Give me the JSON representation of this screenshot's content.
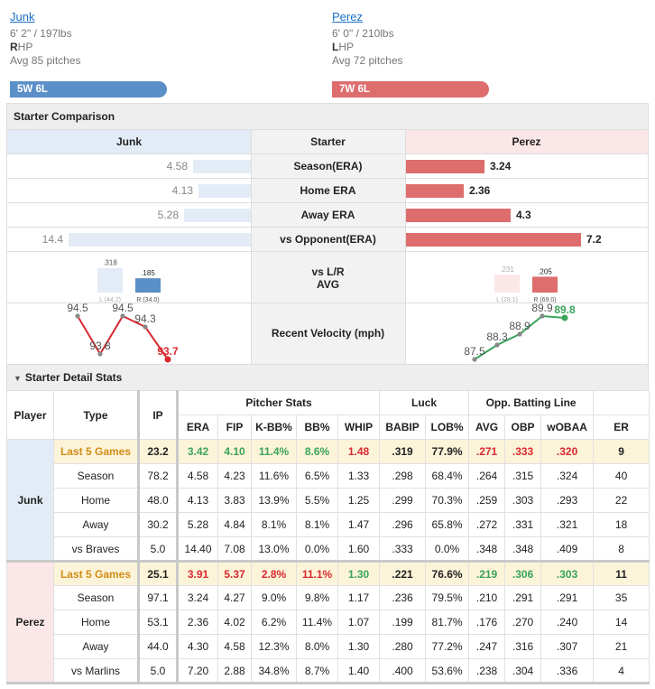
{
  "header": {
    "top_right_link": "↓ ..."
  },
  "home": {
    "name": "Junk",
    "height_weight": "6' 2\" / 197lbs",
    "hand_initial": "R",
    "hand_rest": "HP",
    "avg_pitches": "Avg 85 pitches",
    "record": "5W 6L",
    "color": "#5b8fc7"
  },
  "away": {
    "name": "Perez",
    "height_weight": "6' 0\" / 210lbs",
    "hand_initial": "L",
    "hand_rest": "HP",
    "avg_pitches": "Avg 72 pitches",
    "record": "7W 6L",
    "color": "#de6d6d"
  },
  "comparison": {
    "title": "Starter Comparison",
    "col_left": "Junk",
    "col_mid": "Starter",
    "col_right": "Perez",
    "rows": [
      {
        "label": "Season(ERA)",
        "left": "4.58",
        "right": "3.24",
        "lval": 4.58,
        "rval": 3.24
      },
      {
        "label": "Home ERA",
        "left": "4.13",
        "right": "2.36",
        "lval": 4.13,
        "rval": 2.36
      },
      {
        "label": "Away ERA",
        "left": "5.28",
        "right": "4.3",
        "lval": 5.28,
        "rval": 4.3
      },
      {
        "label": "vs Opponent(ERA)",
        "left": "14.4",
        "right": "7.2",
        "lval": 14.4,
        "rval": 7.2
      }
    ],
    "vs_lr_label_1": "vs L/R",
    "vs_lr_label_2": "AVG",
    "home_lr": {
      "l_val": ".318",
      "r_val": ".185",
      "l_lbl": "L (44.2)",
      "r_lbl": "R (34.0)",
      "l": 0.318,
      "r": 0.185
    },
    "away_lr": {
      "l_val": ".231",
      "r_val": ".205",
      "l_lbl": "L (28.1)",
      "r_lbl": "R (69.0)",
      "l": 0.231,
      "r": 0.205
    },
    "velocity_label": "Recent Velocity (mph)",
    "home_velocity": [
      94.5,
      93.8,
      94.5,
      94.3,
      93.7
    ],
    "home_velocity_labels": [
      "94.5",
      "93.8",
      "94.5",
      "94.3",
      "93.7"
    ],
    "away_velocity": [
      87.5,
      88.3,
      88.9,
      89.9,
      89.8
    ],
    "away_velocity_labels": [
      "87.5",
      "88.3",
      "88.9",
      "89.9",
      "89.8"
    ]
  },
  "detail": {
    "title": "Starter Detail Stats",
    "headers": {
      "player": "Player",
      "type": "Type",
      "ip": "IP",
      "pitcher_stats": "Pitcher Stats",
      "luck": "Luck",
      "opp": "Opp. Batting Line",
      "era": "ERA",
      "fip": "FIP",
      "kbb": "K-BB%",
      "bb": "BB%",
      "whip": "WHIP",
      "babip": "BABIP",
      "lob": "LOB%",
      "avg": "AVG",
      "obp": "OBP",
      "woba": "wOBAA",
      "er": "ER"
    },
    "groups": [
      {
        "player": "Junk",
        "rows": [
          {
            "type": "Last 5 Games",
            "ip": "23.2",
            "era": "3.42",
            "fip": "4.10",
            "kbb": "11.4%",
            "bb": "8.6%",
            "whip": "1.48",
            "babip": ".319",
            "lob": "77.9%",
            "avg": ".271",
            "obp": ".333",
            "woba": ".320",
            "er": "9"
          },
          {
            "type": "Season",
            "ip": "78.2",
            "era": "4.58",
            "fip": "4.23",
            "kbb": "11.6%",
            "bb": "6.5%",
            "whip": "1.33",
            "babip": ".298",
            "lob": "68.4%",
            "avg": ".264",
            "obp": ".315",
            "woba": ".324",
            "er": "40"
          },
          {
            "type": "Home",
            "ip": "48.0",
            "era": "4.13",
            "fip": "3.83",
            "kbb": "13.9%",
            "bb": "5.5%",
            "whip": "1.25",
            "babip": ".299",
            "lob": "70.3%",
            "avg": ".259",
            "obp": ".303",
            "woba": ".293",
            "er": "22"
          },
          {
            "type": "Away",
            "ip": "30.2",
            "era": "5.28",
            "fip": "4.84",
            "kbb": "8.1%",
            "bb": "8.1%",
            "whip": "1.47",
            "babip": ".296",
            "lob": "65.8%",
            "avg": ".272",
            "obp": ".331",
            "woba": ".321",
            "er": "18"
          },
          {
            "type": "vs Braves",
            "ip": "5.0",
            "era": "14.40",
            "fip": "7.08",
            "kbb": "13.0%",
            "bb": "0.0%",
            "whip": "1.60",
            "babip": ".333",
            "lob": "0.0%",
            "avg": ".348",
            "obp": ".348",
            "woba": ".409",
            "er": "8"
          }
        ]
      },
      {
        "player": "Perez",
        "rows": [
          {
            "type": "Last 5 Games",
            "ip": "25.1",
            "era": "3.91",
            "fip": "5.37",
            "kbb": "2.8%",
            "bb": "11.1%",
            "whip": "1.30",
            "babip": ".221",
            "lob": "76.6%",
            "avg": ".219",
            "obp": ".306",
            "woba": ".303",
            "er": "11"
          },
          {
            "type": "Season",
            "ip": "97.1",
            "era": "3.24",
            "fip": "4.27",
            "kbb": "9.0%",
            "bb": "9.8%",
            "whip": "1.17",
            "babip": ".236",
            "lob": "79.5%",
            "avg": ".210",
            "obp": ".291",
            "woba": ".291",
            "er": "35"
          },
          {
            "type": "Home",
            "ip": "53.1",
            "era": "2.36",
            "fip": "4.02",
            "kbb": "6.2%",
            "bb": "11.4%",
            "whip": "1.07",
            "babip": ".199",
            "lob": "81.7%",
            "avg": ".176",
            "obp": ".270",
            "woba": ".240",
            "er": "14"
          },
          {
            "type": "Away",
            "ip": "44.0",
            "era": "4.30",
            "fip": "4.58",
            "kbb": "12.3%",
            "bb": "8.0%",
            "whip": "1.30",
            "babip": ".280",
            "lob": "77.2%",
            "avg": ".247",
            "obp": ".316",
            "woba": ".307",
            "er": "21"
          },
          {
            "type": "vs Marlins",
            "ip": "5.0",
            "era": "7.20",
            "fip": "2.88",
            "kbb": "34.8%",
            "bb": "8.7%",
            "whip": "1.40",
            "babip": ".400",
            "lob": "53.6%",
            "avg": ".238",
            "obp": ".304",
            "woba": ".336",
            "er": "4"
          }
        ]
      }
    ],
    "colors": {
      "good": "#3aa35a",
      "bad": "#d8282f",
      "last5_bg": "#fcf4d9",
      "last5_label": "#d18d17"
    }
  }
}
